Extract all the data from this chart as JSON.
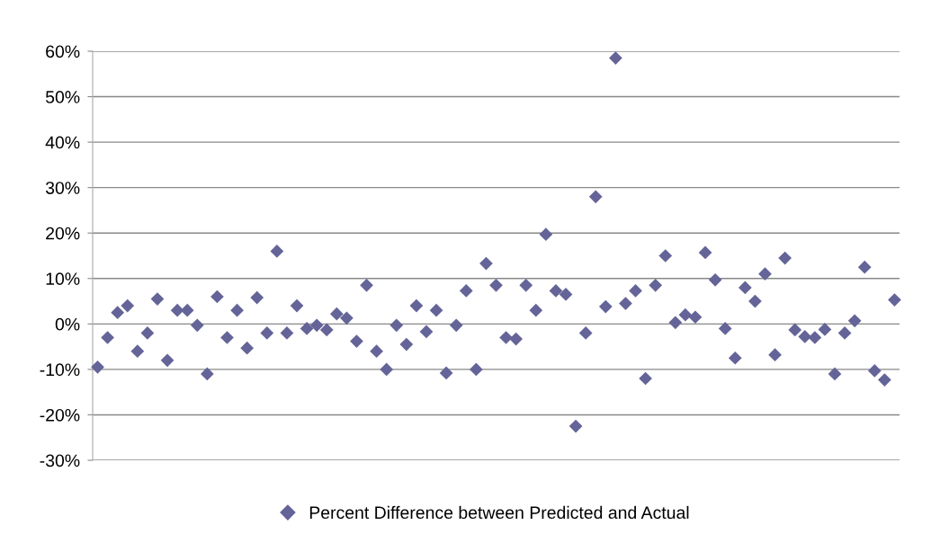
{
  "chart_data": {
    "type": "scatter",
    "marker": "diamond",
    "grid": "y",
    "legend": "bottom",
    "categories": [
      null,
      null,
      null,
      null,
      null,
      null,
      null,
      null,
      null,
      null,
      null,
      null,
      null,
      null,
      null,
      null,
      null,
      null,
      null,
      null,
      null,
      null,
      null,
      null,
      null,
      null,
      null,
      null,
      null,
      null,
      null,
      null,
      null,
      null,
      null,
      null,
      null,
      null,
      null,
      null,
      null,
      null,
      null,
      null,
      null,
      null,
      null,
      null,
      null,
      null,
      null,
      null,
      null,
      null,
      null,
      null,
      null,
      null,
      null,
      null,
      null,
      null,
      null,
      null,
      null,
      null,
      null,
      null,
      null,
      null,
      null,
      null,
      null,
      null,
      null,
      null,
      null,
      null,
      null,
      null,
      null
    ],
    "ylim": [
      -30,
      60
    ],
    "yticks": [
      {
        "value": -30,
        "label": "-30%"
      },
      {
        "value": -20,
        "label": "-20%"
      },
      {
        "value": -10,
        "label": "-10%"
      },
      {
        "value": 0,
        "label": "0%"
      },
      {
        "value": 10,
        "label": "10%"
      },
      {
        "value": 20,
        "label": "20%"
      },
      {
        "value": 30,
        "label": "30%"
      },
      {
        "value": 40,
        "label": "40%"
      },
      {
        "value": 50,
        "label": "50%"
      },
      {
        "value": 60,
        "label": "60%"
      }
    ],
    "series": [
      {
        "name": "Percent Difference between Predicted and Actual",
        "color": "#646498",
        "values": [
          -9.5,
          -3,
          2.5,
          4,
          -6,
          -2,
          5.5,
          -8,
          3,
          3,
          -0.3,
          -11,
          6,
          -3,
          3,
          -5.3,
          5.8,
          -2,
          16,
          -2,
          4,
          -1,
          -0.3,
          -1.3,
          2.2,
          1.3,
          -3.8,
          8.5,
          -6,
          -10,
          -0.3,
          -4.5,
          4,
          -1.7,
          3,
          -10.8,
          -0.3,
          7.3,
          -10,
          13.3,
          8.5,
          -3,
          -3.3,
          8.5,
          3,
          19.7,
          7.3,
          6.5,
          -22.5,
          -2,
          28,
          3.8,
          58.5,
          4.5,
          7.3,
          -12,
          8.5,
          15,
          0.3,
          2,
          1.5,
          15.7,
          9.7,
          -1,
          -7.5,
          8,
          5,
          11,
          -6.8,
          14.5,
          -1.3,
          -2.8,
          -3,
          -1.2,
          -11,
          -2,
          0.7,
          12.5,
          -10.3,
          -12.3,
          5.3
        ]
      }
    ]
  }
}
